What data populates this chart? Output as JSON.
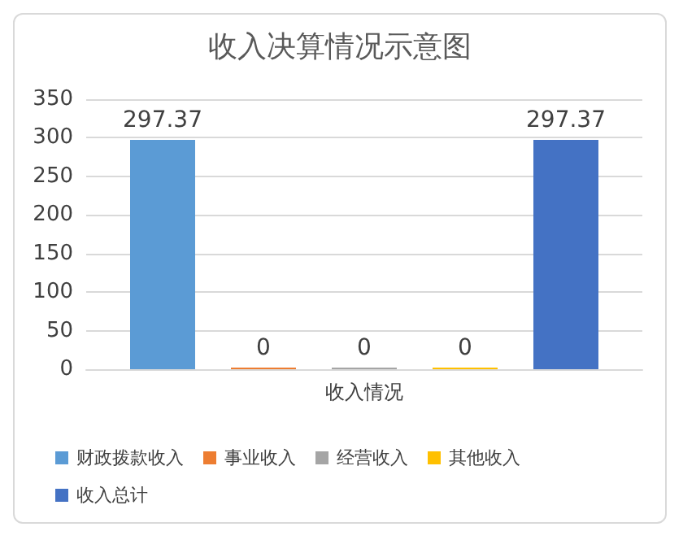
{
  "chart_data": {
    "type": "bar",
    "title": "收入决算情况示意图",
    "categories": [
      "收入情况"
    ],
    "series": [
      {
        "name": "财政拨款收入",
        "color": "#5b9bd5",
        "values": [
          297.37
        ]
      },
      {
        "name": "事业收入",
        "color": "#ed7d31",
        "values": [
          0
        ]
      },
      {
        "name": "经营收入",
        "color": "#a5a5a5",
        "values": [
          0
        ]
      },
      {
        "name": "其他收入",
        "color": "#ffc000",
        "values": [
          0
        ]
      },
      {
        "name": "收入总计",
        "color": "#4472c4",
        "values": [
          297.37
        ]
      }
    ],
    "ylim": [
      0,
      350
    ],
    "yticks": [
      0,
      50,
      100,
      150,
      200,
      250,
      300,
      350
    ],
    "grid": "y",
    "legend": "bottom",
    "data_labels": true
  }
}
